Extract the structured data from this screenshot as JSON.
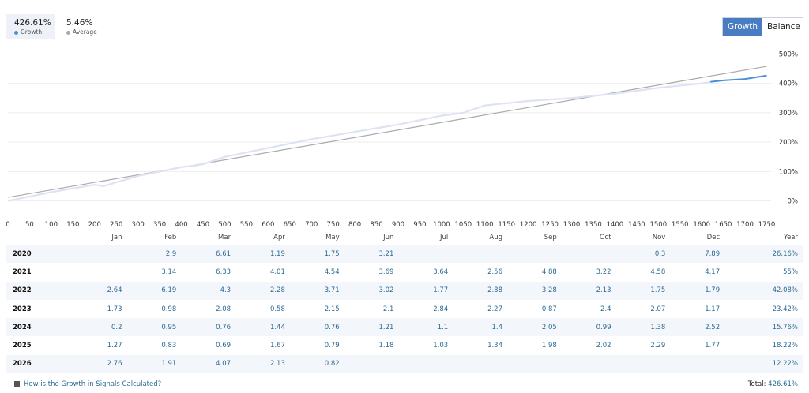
{
  "stats": {
    "growth_value": "426.61%",
    "growth_label": "Growth",
    "average_value": "5.46%",
    "average_label": "Average"
  },
  "toggle": {
    "growth": "Growth",
    "balance": "Balance"
  },
  "colors": {
    "growth_line": "#4a90d9",
    "growth_fade": "#dde3f3",
    "trend": "#aaaaaa",
    "accent": "#4a7cc1"
  },
  "chart_data": {
    "type": "line",
    "title": "",
    "xlabel": "",
    "ylabel": "",
    "x_ticks": [
      0,
      50,
      100,
      150,
      200,
      250,
      300,
      350,
      400,
      450,
      500,
      550,
      600,
      650,
      700,
      750,
      800,
      850,
      900,
      950,
      1000,
      1050,
      1100,
      1150,
      1200,
      1250,
      1300,
      1350,
      1400,
      1450,
      1500,
      1550,
      1600,
      1650,
      1700,
      1750
    ],
    "y_ticks": [
      "0%",
      "100%",
      "200%",
      "300%",
      "400%",
      "500%"
    ],
    "xlim": [
      0,
      1760
    ],
    "ylim": [
      -20,
      520
    ],
    "grid": true,
    "series": [
      {
        "name": "Growth",
        "x": [
          0,
          100,
          200,
          220,
          300,
          400,
          430,
          450,
          500,
          600,
          700,
          800,
          900,
          1000,
          1050,
          1100,
          1200,
          1300,
          1400,
          1500,
          1600,
          1620,
          1650,
          1700,
          1750
        ],
        "y": [
          0,
          30,
          55,
          50,
          85,
          115,
          120,
          125,
          150,
          180,
          210,
          235,
          260,
          290,
          300,
          325,
          340,
          350,
          365,
          385,
          400,
          405,
          410,
          415,
          426.61
        ]
      },
      {
        "name": "Trend",
        "x": [
          0,
          1750
        ],
        "y": [
          12,
          458
        ]
      }
    ]
  },
  "table": {
    "headers": [
      "",
      "Jan",
      "Feb",
      "Mar",
      "Apr",
      "May",
      "Jun",
      "Jul",
      "Aug",
      "Sep",
      "Oct",
      "Nov",
      "Dec",
      "Year"
    ],
    "rows": [
      [
        "2020",
        "",
        "2.9",
        "6.61",
        "1.19",
        "1.75",
        "3.21",
        "",
        "",
        "",
        "",
        "0.3",
        "7.89",
        "26.16%"
      ],
      [
        "2021",
        "",
        "3.14",
        "6.33",
        "4.01",
        "4.54",
        "3.69",
        "3.64",
        "2.56",
        "4.88",
        "3.22",
        "4.58",
        "4.17",
        "55%"
      ],
      [
        "2022",
        "2.64",
        "6.19",
        "4.3",
        "2.28",
        "3.71",
        "3.02",
        "1.77",
        "2.88",
        "3.28",
        "2.13",
        "1.75",
        "1.79",
        "42.08%"
      ],
      [
        "2023",
        "1.73",
        "0.98",
        "2.08",
        "0.58",
        "2.15",
        "2.1",
        "2.84",
        "2.27",
        "0.87",
        "2.4",
        "2.07",
        "1.17",
        "23.42%"
      ],
      [
        "2024",
        "0.2",
        "0.95",
        "0.76",
        "1.44",
        "0.76",
        "1.21",
        "1.1",
        "1.4",
        "2.05",
        "0.99",
        "1.38",
        "2.52",
        "15.76%"
      ],
      [
        "2025",
        "1.27",
        "0.83",
        "0.69",
        "1.67",
        "0.79",
        "1.18",
        "1.03",
        "1.34",
        "1.98",
        "2.02",
        "2.29",
        "1.77",
        "18.22%"
      ],
      [
        "2026",
        "2.76",
        "1.91",
        "4.07",
        "2.13",
        "0.82",
        "",
        "",
        "",
        "",
        "",
        "",
        "",
        "12.22%"
      ]
    ]
  },
  "footer": {
    "link": "How is the Growth in Signals Calculated?",
    "total_label": "Total:",
    "total_value": "426.61%"
  }
}
